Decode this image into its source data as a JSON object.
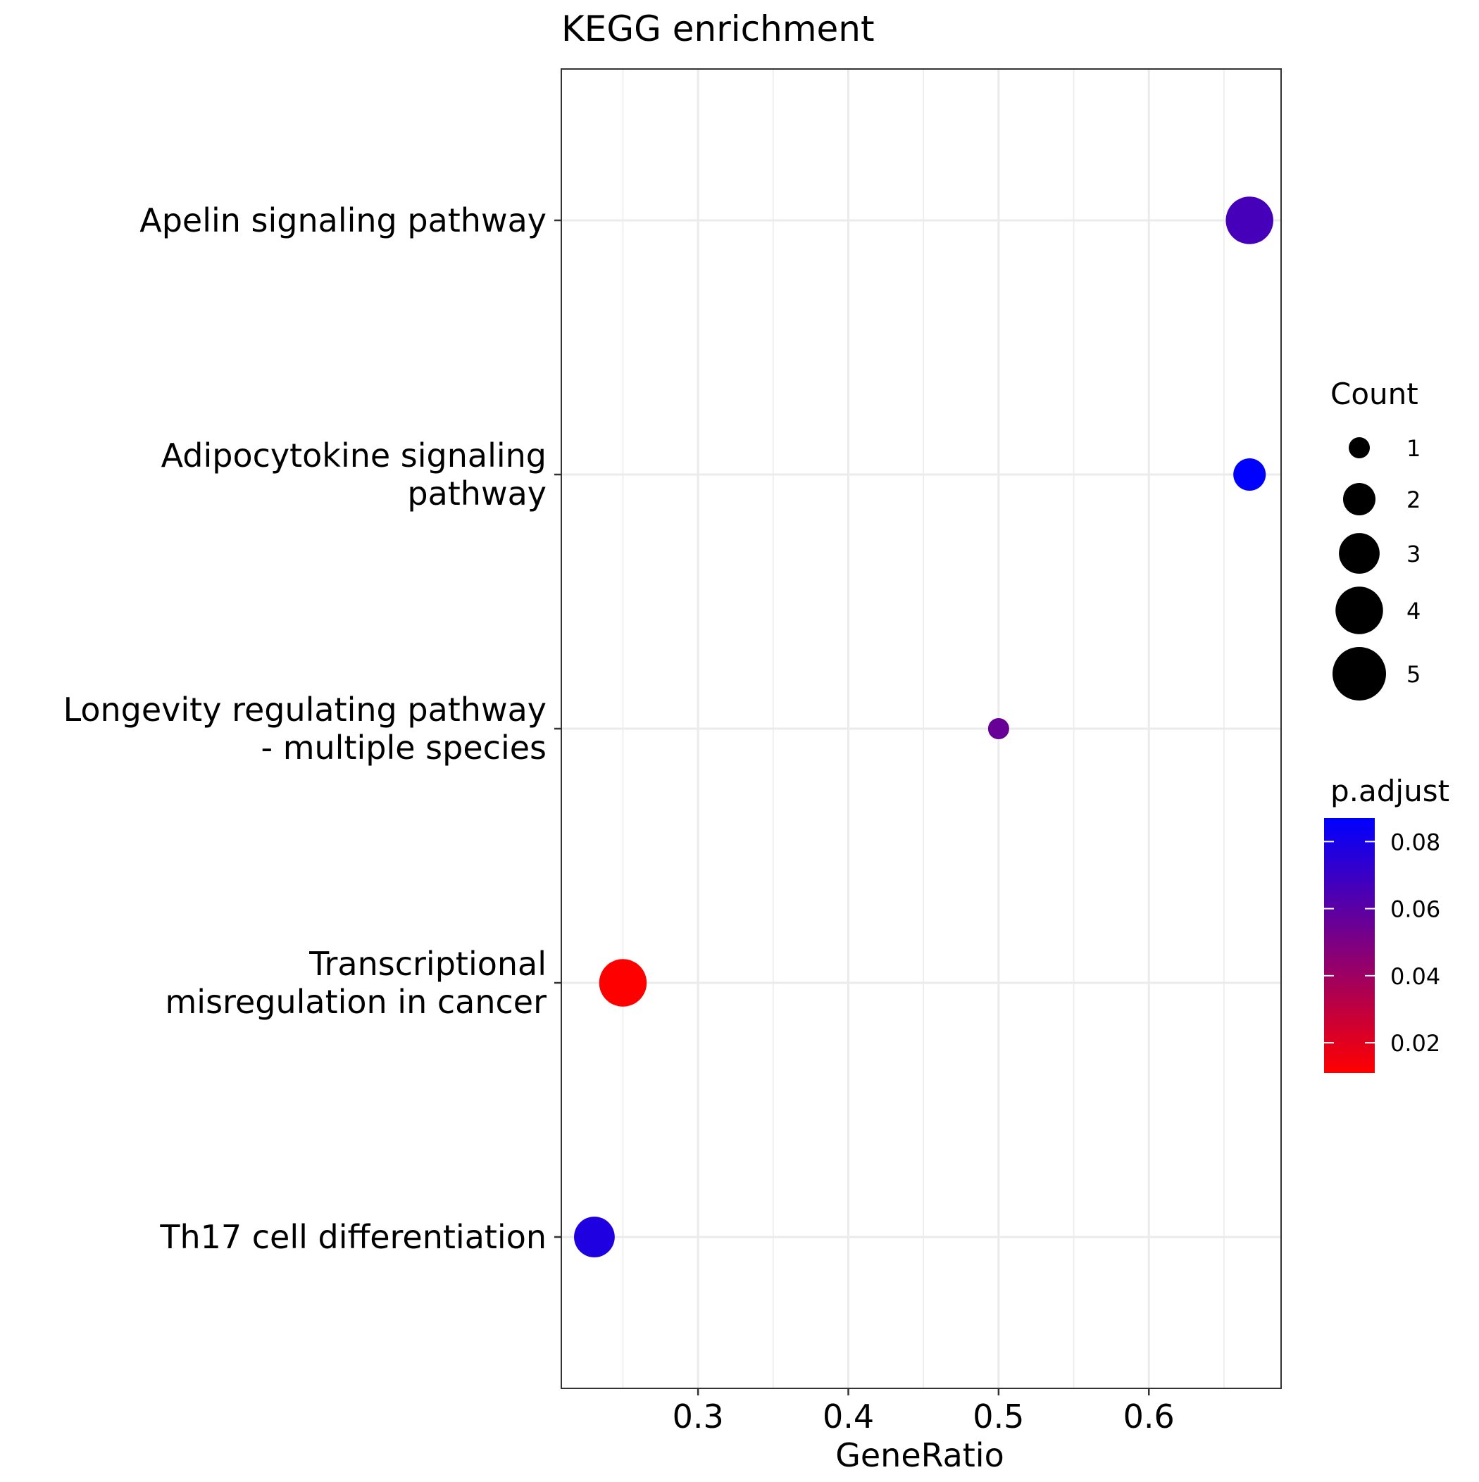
{
  "chart_data": {
    "type": "scatter",
    "title": "KEGG enrichment",
    "xlabel": "GeneRatio",
    "ylabel": "",
    "xlim": [
      0.209,
      0.688
    ],
    "x_ticks": [
      0.3,
      0.4,
      0.5,
      0.6
    ],
    "x_tick_labels": [
      "0.3",
      "0.4",
      "0.5",
      "0.6"
    ],
    "grid": true,
    "categories": [
      [
        "Apelin signaling pathway"
      ],
      [
        "Adipocytokine signaling",
        "pathway"
      ],
      [
        "Longevity regulating pathway",
        "- multiple species"
      ],
      [
        "Transcriptional",
        "misregulation in cancer"
      ],
      [
        "Th17 cell differentiation"
      ]
    ],
    "points": [
      {
        "category_index": 0,
        "x": 0.667,
        "count": 4,
        "p_adjust": 0.066
      },
      {
        "category_index": 1,
        "x": 0.667,
        "count": 2,
        "p_adjust": 0.087
      },
      {
        "category_index": 2,
        "x": 0.5,
        "count": 1,
        "p_adjust": 0.056
      },
      {
        "category_index": 3,
        "x": 0.25,
        "count": 4,
        "p_adjust": 0.011
      },
      {
        "category_index": 4,
        "x": 0.231,
        "count": 3,
        "p_adjust": 0.078
      }
    ],
    "size_legend": {
      "title": "Count",
      "values": [
        1,
        2,
        3,
        4,
        5
      ],
      "labels": [
        "1",
        "2",
        "3",
        "4",
        "5"
      ]
    },
    "color_legend": {
      "title": "p.adjust",
      "range": [
        0.011,
        0.087
      ],
      "ticks": [
        0.02,
        0.04,
        0.06,
        0.08
      ],
      "tick_labels": [
        "0.02",
        "0.04",
        "0.06",
        "0.08"
      ],
      "low_color": "#FF0000",
      "high_color": "#0000FF"
    },
    "legend_placement": "right"
  }
}
